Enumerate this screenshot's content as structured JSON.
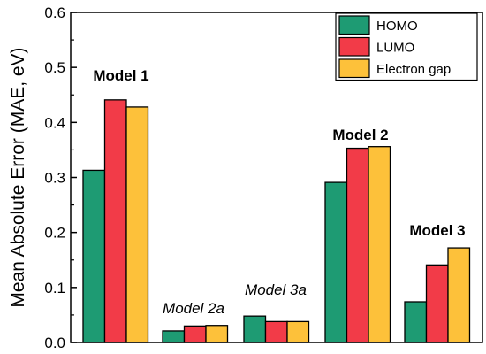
{
  "chart_data": {
    "type": "bar",
    "groups": [
      "Model 1",
      "Model 2a",
      "Model 3a",
      "Model 2",
      "Model 3"
    ],
    "series": [
      {
        "name": "HOMO",
        "color": "#1e9b73",
        "values": [
          0.313,
          0.021,
          0.048,
          0.291,
          0.074
        ]
      },
      {
        "name": "LUMO",
        "color": "#f23b48",
        "values": [
          0.441,
          0.03,
          0.038,
          0.353,
          0.141
        ]
      },
      {
        "name": "Electron gap",
        "color": "#fdc13a",
        "values": [
          0.428,
          0.031,
          0.038,
          0.356,
          0.172
        ]
      }
    ],
    "annotations": [
      {
        "text": "Model 1",
        "style": "bold"
      },
      {
        "text": "Model 2a",
        "style": "italic"
      },
      {
        "text": "Model 3a",
        "style": "italic"
      },
      {
        "text": "Model 2",
        "style": "bold"
      },
      {
        "text": "Model 3",
        "style": "bold"
      }
    ],
    "ylabel": "Mean Absolute Error (MAE, eV)",
    "xlabel": "",
    "ylim": [
      0,
      0.6
    ],
    "yticks": [
      "0.0",
      "0.1",
      "0.2",
      "0.3",
      "0.4",
      "0.5",
      "0.6"
    ],
    "legend_position": "top-right",
    "grid": false
  }
}
